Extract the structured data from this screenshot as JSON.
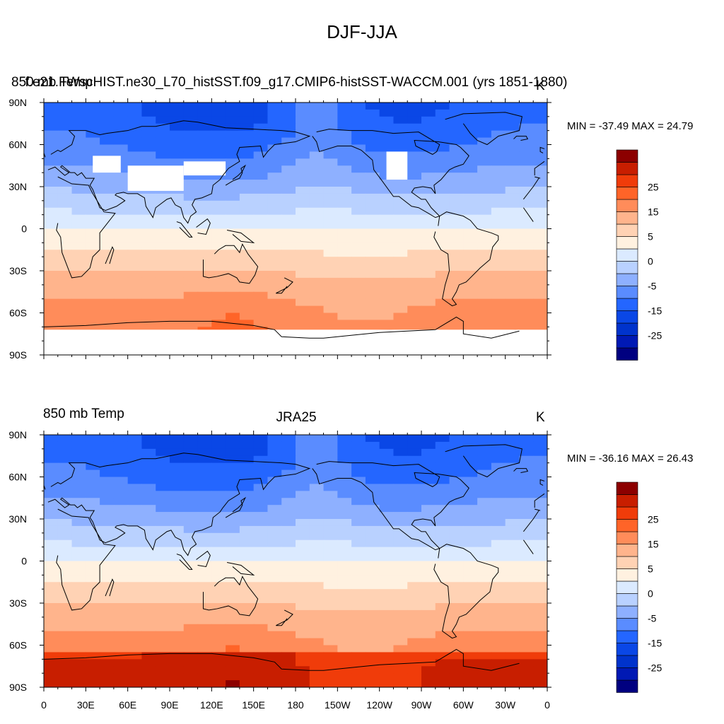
{
  "figure": {
    "title": "DJF-JJA"
  },
  "colorbar": {
    "colors": [
      "#000080",
      "#0019b4",
      "#0033cc",
      "#0a47e6",
      "#2466ff",
      "#5a8cff",
      "#8eb0ff",
      "#b9d1ff",
      "#dbeaff",
      "#fff1e0",
      "#ffd2b4",
      "#ffb48c",
      "#ff8c5a",
      "#ff6428",
      "#f03c0a",
      "#c81e00",
      "#8c0000"
    ],
    "labels": [
      "-25",
      "-15",
      "-5",
      "0",
      "5",
      "15",
      "25"
    ],
    "label_slots": [
      2,
      4,
      6,
      8,
      10,
      12,
      14
    ]
  },
  "axes": {
    "lon_labels": [
      "0",
      "30E",
      "60E",
      "90E",
      "120E",
      "150E",
      "180",
      "150W",
      "120W",
      "90W",
      "60W",
      "30W",
      "0"
    ],
    "lat_labels": [
      "90N",
      "60N",
      "30N",
      "0",
      "30S",
      "60S",
      "90S"
    ]
  },
  "panels": [
    {
      "left_title": "850 mb Temp",
      "center_title": "f.e21.FWscHIST.ne30_L70_histSST.f09_g17.CMIP6-histSST-WACCM.001 (yrs 1851-1880)",
      "right_title": "K",
      "min_max": "MIN = -37.49 MAX =  24.79",
      "min": -37.49,
      "max": 24.79
    },
    {
      "left_title": "850 mb Temp",
      "center_title": "JRA25",
      "right_title": "K",
      "min_max": "MIN = -36.16 MAX =  26.43",
      "min": -36.16,
      "max": 26.43
    }
  ]
}
